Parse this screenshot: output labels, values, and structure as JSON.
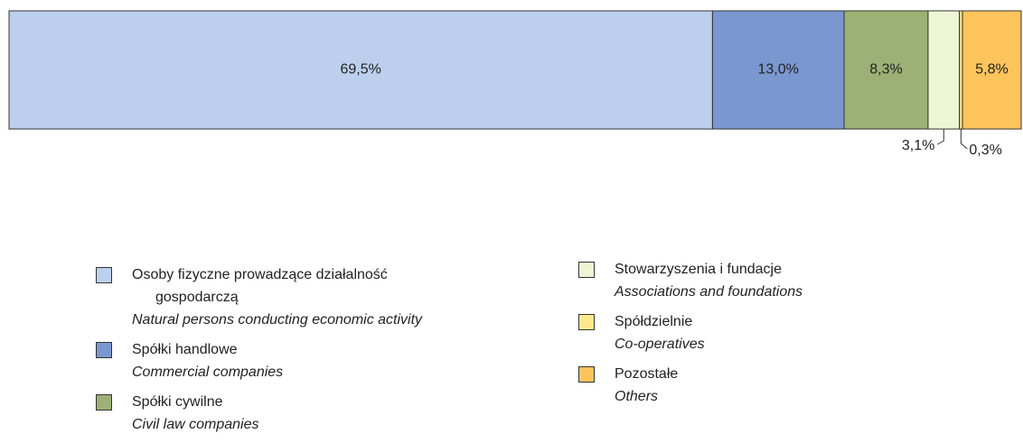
{
  "chart_data": {
    "type": "stacked_bar_horizontal",
    "series": [
      {
        "name": "Osoby fizyczne prowadzące działalność gospodarczą",
        "name_en": "Natural persons conducting economic activity",
        "color": "#bcd0ee",
        "values": [
          69.5
        ],
        "value_labels": [
          "69,5%"
        ]
      },
      {
        "name": "Spółki handlowe",
        "name_en": "Commercial companies",
        "color": "#7b97d0",
        "values": [
          13.0
        ],
        "value_labels": [
          "13,0%"
        ]
      },
      {
        "name": "Spółki cywilne",
        "name_en": "Civil law companies",
        "color": "#9db075",
        "values": [
          8.3
        ],
        "value_labels": [
          "8,3%"
        ]
      },
      {
        "name": "Stowarzyszenia i fundacje",
        "name_en": "Associations and foundations",
        "color": "#eef5d4",
        "values": [
          3.1
        ],
        "value_labels": [
          "3,1%"
        ]
      },
      {
        "name": "Spółdzielnie",
        "name_en": "Co-operatives",
        "color": "#fde98c",
        "values": [
          0.3
        ],
        "value_labels": [
          "0,3%"
        ]
      },
      {
        "name": "Pozostałe",
        "name_en": "Others",
        "color": "#fec45c",
        "values": [
          5.8
        ],
        "value_labels": [
          "5,8%"
        ]
      }
    ]
  }
}
